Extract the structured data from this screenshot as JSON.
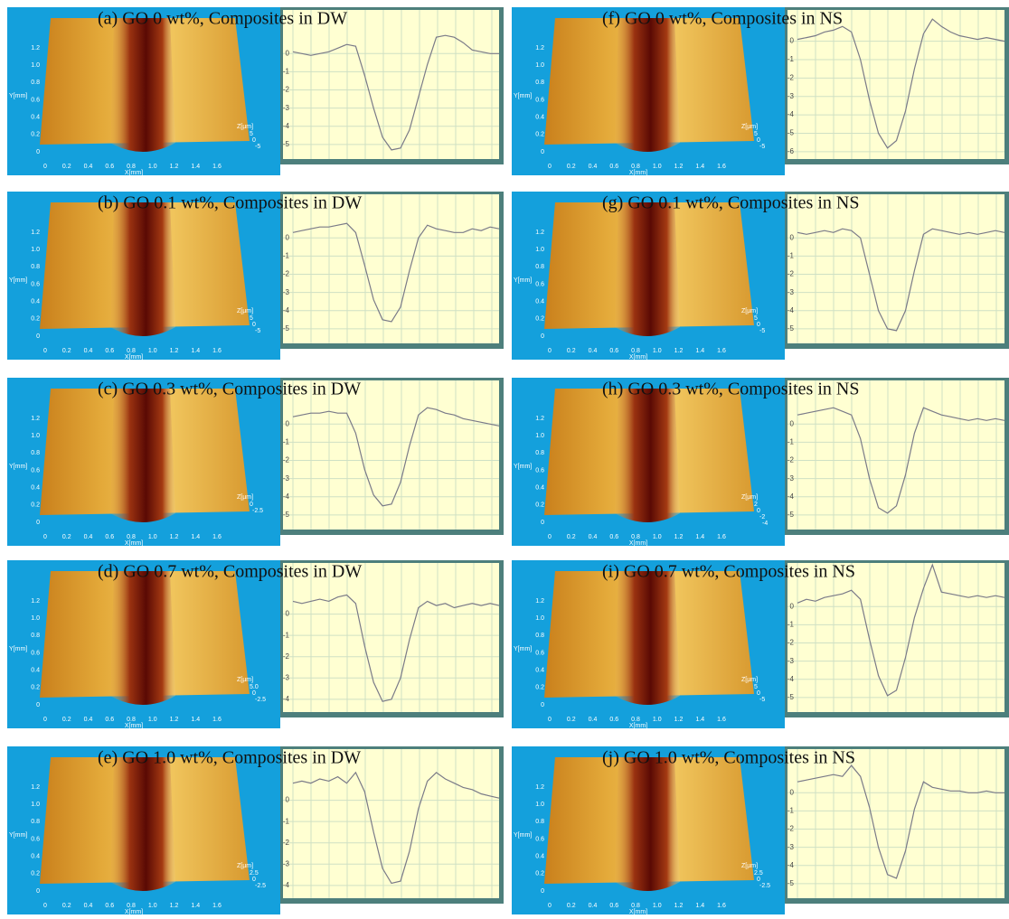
{
  "surface_axes": {
    "xlabel": "X[mm]",
    "ylabel": "Y[mm]",
    "zlabel": "Z[µm]",
    "xticks": [
      0,
      0.2,
      0.4,
      0.6,
      0.8,
      {
        "value": 1,
        "label": "1.0"
      },
      1.2,
      1.4,
      1.6
    ],
    "yticks": [
      0,
      0.2,
      0.4,
      0.6,
      0.8,
      {
        "value": 1,
        "label": "1.0"
      },
      1.2
    ]
  },
  "panels": [
    {
      "label": "(a) GO 0 wt%, Composites in DW",
      "zticks": [
        5,
        0,
        -5
      ],
      "profile": {
        "ylim": [
          -5.8,
          2.4
        ],
        "yticks": [
          0,
          -1,
          -2,
          -3,
          -4,
          -5
        ],
        "values": [
          0.1,
          0,
          -0.1,
          0,
          0.1,
          0.3,
          0.5,
          0.4,
          -1.2,
          -3,
          -4.6,
          -5.3,
          -5.2,
          -4.2,
          -2.4,
          -0.6,
          0.9,
          1,
          0.9,
          0.6,
          0.2,
          0.1,
          0,
          0
        ]
      }
    },
    {
      "label": "(b) GO 0.1 wt%, Composites in DW",
      "zticks": [
        5,
        0,
        -5
      ],
      "profile": {
        "ylim": [
          -5.8,
          2.4
        ],
        "yticks": [
          0,
          -1,
          -2,
          -3,
          -4,
          -5
        ],
        "values": [
          0.3,
          0.4,
          0.5,
          0.6,
          0.6,
          0.7,
          0.8,
          0.3,
          -1.5,
          -3.4,
          -4.5,
          -4.6,
          -3.8,
          -1.8,
          0,
          0.7,
          0.5,
          0.4,
          0.3,
          0.3,
          0.5,
          0.4,
          0.6,
          0.5
        ]
      }
    },
    {
      "label": "(c) GO 0.3 wt%, Composites in DW",
      "zticks": [
        0,
        -2.5
      ],
      "profile": {
        "ylim": [
          -5.8,
          2.4
        ],
        "yticks": [
          0,
          -1,
          -2,
          -3,
          -4,
          -5
        ],
        "values": [
          0.4,
          0.5,
          0.6,
          0.6,
          0.7,
          0.6,
          0.6,
          -0.5,
          -2.5,
          -3.9,
          -4.5,
          -4.4,
          -3.2,
          -1.2,
          0.5,
          0.9,
          0.8,
          0.6,
          0.5,
          0.3,
          0.2,
          0.1,
          0,
          -0.1
        ]
      }
    },
    {
      "label": "(d) GO 0.7 wt%, Composites in DW",
      "zticks": [
        {
          "value": 5,
          "label": "5.0"
        },
        0,
        -2.5
      ],
      "profile": {
        "ylim": [
          -4.6,
          2.4
        ],
        "yticks": [
          0,
          -1,
          -2,
          -3,
          -4
        ],
        "values": [
          0.6,
          0.5,
          0.6,
          0.7,
          0.6,
          0.8,
          0.9,
          0.5,
          -1.5,
          -3.2,
          -4.1,
          -4,
          -3,
          -1.2,
          0.3,
          0.6,
          0.4,
          0.5,
          0.3,
          0.4,
          0.5,
          0.4,
          0.5,
          0.4
        ]
      }
    },
    {
      "label": "(e) GO 1.0 wt%, Composites in DW",
      "zticks": [
        2.5,
        0,
        -2.5
      ],
      "profile": {
        "ylim": [
          -4.6,
          2.4
        ],
        "yticks": [
          0,
          -1,
          -2,
          -3,
          -4
        ],
        "values": [
          0.8,
          0.9,
          0.8,
          1,
          0.9,
          1.1,
          0.8,
          1.3,
          0.4,
          -1.5,
          -3.2,
          -3.9,
          -3.8,
          -2.4,
          -0.4,
          0.9,
          1.3,
          1,
          0.8,
          0.6,
          0.5,
          0.3,
          0.2,
          0.1
        ]
      }
    },
    {
      "label": "(f) GO 0 wt%, Composites in NS",
      "zticks": [
        5,
        0,
        -5
      ],
      "profile": {
        "ylim": [
          -6.4,
          1.7
        ],
        "yticks": [
          0,
          -1,
          -2,
          -3,
          -4,
          -5,
          -6
        ],
        "values": [
          0.1,
          0.2,
          0.3,
          0.5,
          0.6,
          0.8,
          0.5,
          -1,
          -3.2,
          -5,
          -5.8,
          -5.4,
          -3.8,
          -1.5,
          0.4,
          1.2,
          0.8,
          0.5,
          0.3,
          0.2,
          0.1,
          0.2,
          0.1,
          0
        ]
      }
    },
    {
      "label": "(g) GO 0.1 wt%, Composites in NS",
      "zticks": [
        5,
        0,
        -5
      ],
      "profile": {
        "ylim": [
          -5.8,
          2.4
        ],
        "yticks": [
          0,
          -1,
          -2,
          -3,
          -4,
          -5
        ],
        "values": [
          0.3,
          0.2,
          0.3,
          0.4,
          0.3,
          0.5,
          0.4,
          0,
          -2,
          -4,
          -5,
          -5.1,
          -4,
          -1.8,
          0.2,
          0.5,
          0.4,
          0.3,
          0.2,
          0.3,
          0.2,
          0.3,
          0.4,
          0.3
        ]
      }
    },
    {
      "label": "(h) GO 0.3 wt%, Composites in NS",
      "zticks": [
        2,
        0,
        -2,
        -4
      ],
      "profile": {
        "ylim": [
          -5.8,
          2.4
        ],
        "yticks": [
          0,
          -1,
          -2,
          -3,
          -4,
          -5
        ],
        "values": [
          0.5,
          0.6,
          0.7,
          0.8,
          0.9,
          0.7,
          0.5,
          -0.8,
          -3,
          -4.6,
          -4.9,
          -4.5,
          -2.8,
          -0.5,
          0.9,
          0.7,
          0.5,
          0.4,
          0.3,
          0.2,
          0.3,
          0.2,
          0.3,
          0.2
        ]
      }
    },
    {
      "label": "(i) GO 0.7 wt%, Composites in NS",
      "zticks": [
        5,
        0,
        -5
      ],
      "profile": {
        "ylim": [
          -5.8,
          2.4
        ],
        "yticks": [
          0,
          -1,
          -2,
          -3,
          -4,
          -5
        ],
        "values": [
          0.2,
          0.4,
          0.3,
          0.5,
          0.6,
          0.7,
          0.9,
          0.4,
          -1.8,
          -3.8,
          -4.9,
          -4.6,
          -2.8,
          -0.6,
          1,
          2.3,
          0.8,
          0.7,
          0.6,
          0.5,
          0.6,
          0.5,
          0.6,
          0.5
        ]
      }
    },
    {
      "label": "(j) GO 1.0 wt%, Composites in NS",
      "zticks": [
        2.5,
        0,
        -2.5
      ],
      "profile": {
        "ylim": [
          -5.8,
          2.4
        ],
        "yticks": [
          0,
          -1,
          -2,
          -3,
          -4,
          -5
        ],
        "values": [
          0.6,
          0.7,
          0.8,
          0.9,
          1,
          0.9,
          1.5,
          0.9,
          -0.8,
          -3,
          -4.5,
          -4.7,
          -3.2,
          -0.9,
          0.6,
          0.3,
          0.2,
          0.1,
          0.1,
          0,
          0,
          0.1,
          0,
          0
        ]
      }
    }
  ]
}
